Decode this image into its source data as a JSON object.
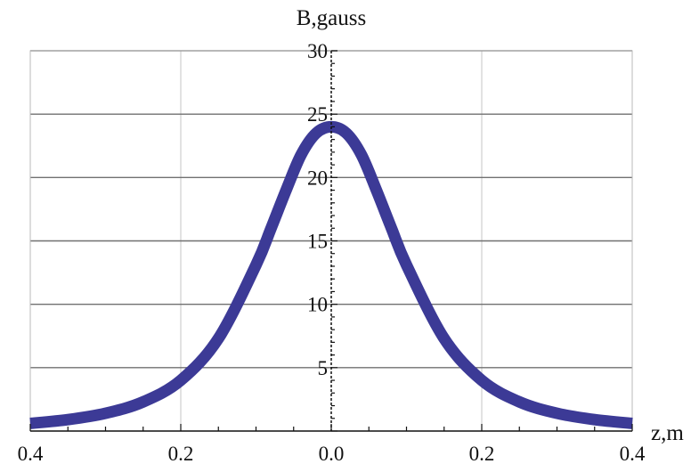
{
  "chart_data": {
    "type": "line",
    "xlabel": "z,m",
    "ylabel": "B,gauss",
    "xlim": [
      -0.4,
      0.4
    ],
    "ylim": [
      0,
      30
    ],
    "x_tick_labels": [
      {
        "value": -0.4,
        "label": "0.4"
      },
      {
        "value": -0.2,
        "label": "0.2"
      },
      {
        "value": 0.0,
        "label": "0.0"
      },
      {
        "value": 0.2,
        "label": "0.2"
      },
      {
        "value": 0.4,
        "label": "0.4"
      }
    ],
    "y_tick_labels": [
      {
        "value": 5,
        "label": "5"
      },
      {
        "value": 10,
        "label": "10"
      },
      {
        "value": 15,
        "label": "15"
      },
      {
        "value": 20,
        "label": "20"
      },
      {
        "value": 25,
        "label": "25"
      },
      {
        "value": 30,
        "label": "30"
      }
    ],
    "grid": true,
    "series": [
      {
        "color": "#3c3a96",
        "x": [
          -0.4,
          -0.35,
          -0.3,
          -0.25,
          -0.2,
          -0.15,
          -0.1,
          -0.08,
          -0.06,
          -0.04,
          -0.02,
          0.0,
          0.02,
          0.04,
          0.06,
          0.08,
          0.1,
          0.15,
          0.2,
          0.25,
          0.3,
          0.35,
          0.4
        ],
        "y": [
          0.6,
          0.9,
          1.4,
          2.3,
          4.0,
          7.3,
          13.1,
          16.0,
          19.0,
          21.8,
          23.5,
          24.0,
          23.5,
          21.8,
          19.0,
          16.0,
          13.1,
          7.3,
          4.0,
          2.3,
          1.4,
          0.9,
          0.6
        ]
      }
    ]
  }
}
